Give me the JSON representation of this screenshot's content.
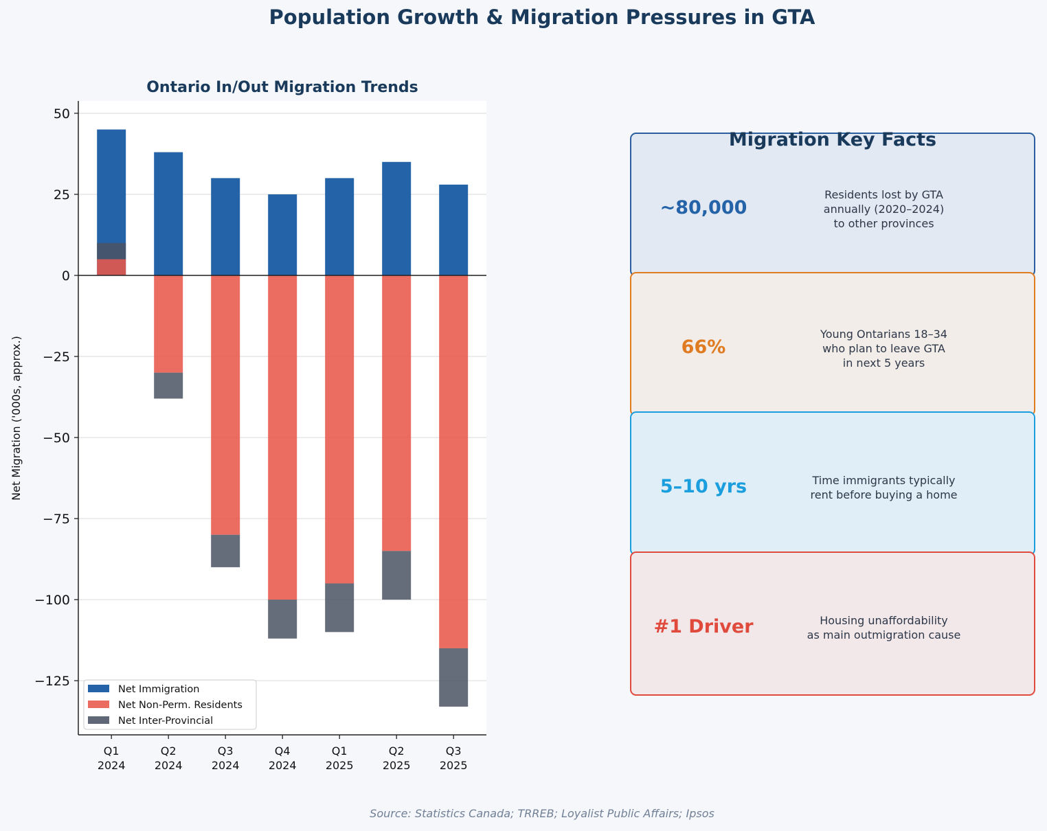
{
  "title": "Population Growth & Migration Pressures in GTA",
  "source": "Source: Statistics Canada; TRREB; Loyalist Public Affairs; Ipsos",
  "chart_data": {
    "type": "bar",
    "stacked": true,
    "title": "Ontario In/Out Migration Trends",
    "xlabel": "",
    "ylabel": "Net Migration ('000s, approx.)",
    "categories": [
      "Q1\n2024",
      "Q2\n2024",
      "Q3\n2024",
      "Q4\n2024",
      "Q1\n2025",
      "Q2\n2025",
      "Q3\n2025"
    ],
    "ylim": [
      -141.7,
      53.8
    ],
    "yticks": [
      50,
      25,
      0,
      -25,
      -50,
      -75,
      -100,
      -125
    ],
    "ytick_labels": [
      "50",
      "25",
      "0",
      "−25",
      "−50",
      "−75",
      "−100",
      "−125"
    ],
    "grid": true,
    "legend_position": "lower-left",
    "series": [
      {
        "name": "Net Immigration",
        "color": "#2563a8",
        "values": [
          45,
          38,
          30,
          25,
          30,
          35,
          28
        ]
      },
      {
        "name": "Net Non-Perm. Residents",
        "color": "#e8584a",
        "values": [
          5,
          -30,
          -80,
          -100,
          -95,
          -85,
          -115
        ]
      },
      {
        "name": "Net Inter-Provincial",
        "color": "#4a5263",
        "values": [
          5,
          -8,
          -10,
          -12,
          -15,
          -15,
          -18
        ]
      }
    ]
  },
  "facts": {
    "title": "Migration Key Facts",
    "items": [
      {
        "value": "~80,000",
        "description": "Residents lost by GTA\nannually (2020–2024)\nto other provinces",
        "color": "#2563a8",
        "border": "#2a5f9e",
        "bg": "#e2e9f3"
      },
      {
        "value": "66%",
        "description": "Young Ontarians 18–34\nwho plan to leave GTA\nin next 5 years",
        "color": "#e07b22",
        "border": "#e07b22",
        "bg": "#f2ede8"
      },
      {
        "value": "5–10 yrs",
        "description": "Time immigrants typically\nrent before buying a home",
        "color": "#1a9ede",
        "border": "#1a9ede",
        "bg": "#e0eef7"
      },
      {
        "value": "#1 Driver",
        "description": "Housing unaffordability\nas main outmigration cause",
        "color": "#e04a3c",
        "border": "#e04a3c",
        "bg": "#f2e8ea"
      }
    ]
  }
}
